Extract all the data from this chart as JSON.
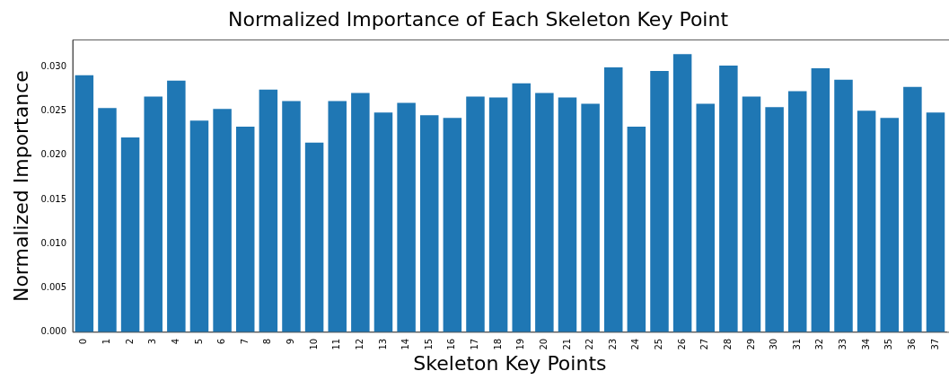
{
  "chart_data": {
    "type": "bar",
    "title": "Normalized Importance of Each Skeleton Key Point",
    "xlabel": "Skeleton Key Points",
    "ylabel": "Normalized Importance",
    "categories": [
      "0",
      "1",
      "2",
      "3",
      "4",
      "5",
      "6",
      "7",
      "8",
      "9",
      "10",
      "11",
      "12",
      "13",
      "14",
      "15",
      "16",
      "17",
      "18",
      "19",
      "20",
      "21",
      "22",
      "23",
      "24",
      "25",
      "26",
      "27",
      "28",
      "29",
      "30",
      "31",
      "32",
      "33",
      "34",
      "35",
      "36",
      "37"
    ],
    "values": [
      0.029,
      0.0253,
      0.022,
      0.0266,
      0.0284,
      0.0239,
      0.0252,
      0.0232,
      0.0274,
      0.0261,
      0.0214,
      0.0261,
      0.027,
      0.0248,
      0.0259,
      0.0245,
      0.0242,
      0.0266,
      0.0265,
      0.0281,
      0.027,
      0.0265,
      0.0258,
      0.0299,
      0.0232,
      0.0295,
      0.0314,
      0.0258,
      0.0301,
      0.0266,
      0.0254,
      0.0272,
      0.0298,
      0.0285,
      0.025,
      0.0242,
      0.0277,
      0.0248
    ],
    "color": "#1f77b4",
    "ylim": [
      0,
      0.033
    ],
    "yticks": [
      {
        "value": 0,
        "label": "0.000"
      },
      0.005,
      {
        "value": 0.01,
        "label": "0.010"
      },
      0.015,
      {
        "value": 0.02,
        "label": "0.020"
      },
      0.025,
      {
        "value": 0.03,
        "label": "0.030"
      }
    ],
    "grid": false
  }
}
